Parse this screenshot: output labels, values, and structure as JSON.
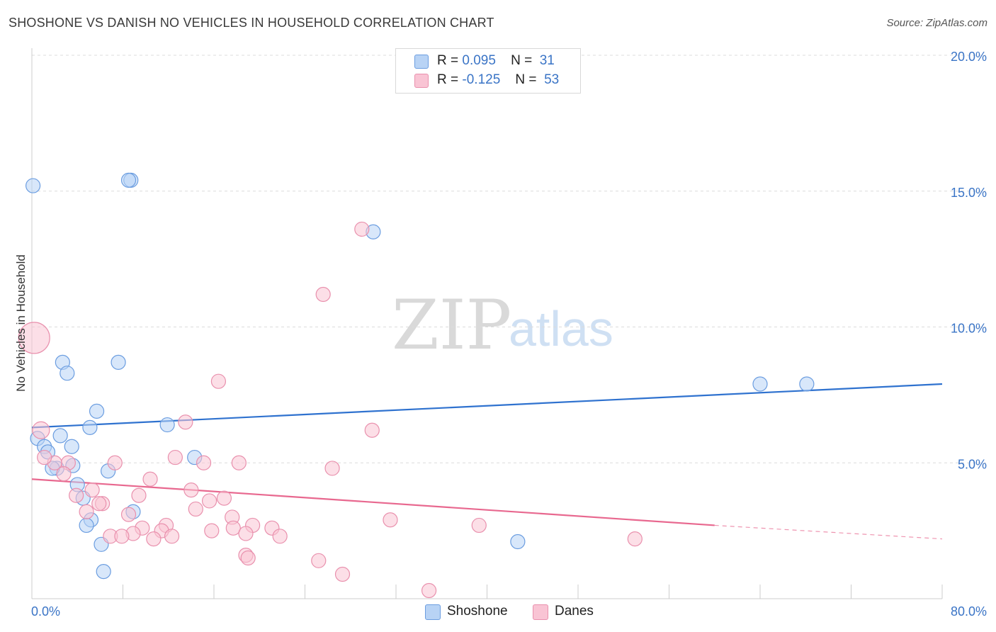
{
  "title": "SHOSHONE VS DANISH NO VEHICLES IN HOUSEHOLD CORRELATION CHART",
  "source": "Source: ZipAtlas.com",
  "watermark": {
    "zip": "ZIP",
    "atlas": "atlas"
  },
  "legend": {
    "rows": [
      {
        "r_label": "R =",
        "r_value": "0.095",
        "n_label": "N =",
        "n_value": "31",
        "color": "#b8d3f5",
        "border": "#6b9de0"
      },
      {
        "r_label": "R =",
        "r_value": "-0.125",
        "n_label": "N =",
        "n_value": "53",
        "color": "#f9c4d4",
        "border": "#e990ad"
      }
    ]
  },
  "bottom_legend": [
    {
      "label": "Shoshone",
      "color": "#b8d3f5",
      "border": "#6b9de0"
    },
    {
      "label": "Danes",
      "color": "#f9c4d4",
      "border": "#e990ad"
    }
  ],
  "chart_data": {
    "type": "scatter",
    "title": "SHOSHONE VS DANISH NO VEHICLES IN HOUSEHOLD CORRELATION CHART",
    "xlabel": "",
    "ylabel": "No Vehicles in Household",
    "xlim": [
      0,
      80
    ],
    "ylim": [
      0,
      20
    ],
    "x_tick_labels": [
      {
        "value": 0,
        "label": "0.0%"
      },
      {
        "value": 80,
        "label": "80.0%"
      }
    ],
    "y_tick_labels": [
      {
        "value": 5,
        "label": "5.0%"
      },
      {
        "value": 10,
        "label": "10.0%"
      },
      {
        "value": 15,
        "label": "15.0%"
      },
      {
        "value": 20,
        "label": "20.0%"
      }
    ],
    "grid": true,
    "series": [
      {
        "name": "Shoshone",
        "color": "#6b9de0",
        "fill": "#b8d3f5",
        "line_color": "#2f72cf",
        "trend": {
          "x": [
            0,
            80
          ],
          "y": [
            6.3,
            7.9
          ]
        },
        "points": [
          {
            "x": 0.1,
            "y": 15.2,
            "size": 10
          },
          {
            "x": 8.7,
            "y": 15.4,
            "size": 10
          },
          {
            "x": 8.5,
            "y": 15.4,
            "size": 10
          },
          {
            "x": 30.0,
            "y": 13.5,
            "size": 10
          },
          {
            "x": 2.7,
            "y": 8.7,
            "size": 10
          },
          {
            "x": 7.6,
            "y": 8.7,
            "size": 10
          },
          {
            "x": 3.1,
            "y": 8.3,
            "size": 10
          },
          {
            "x": 64.0,
            "y": 7.9,
            "size": 10
          },
          {
            "x": 68.1,
            "y": 7.9,
            "size": 10
          },
          {
            "x": 5.7,
            "y": 6.9,
            "size": 10
          },
          {
            "x": 5.1,
            "y": 6.3,
            "size": 10
          },
          {
            "x": 11.9,
            "y": 6.4,
            "size": 10
          },
          {
            "x": 2.5,
            "y": 6.0,
            "size": 10
          },
          {
            "x": 0.5,
            "y": 5.9,
            "size": 10
          },
          {
            "x": 3.5,
            "y": 5.6,
            "size": 10
          },
          {
            "x": 1.1,
            "y": 5.6,
            "size": 10
          },
          {
            "x": 1.4,
            "y": 5.4,
            "size": 10
          },
          {
            "x": 14.3,
            "y": 5.2,
            "size": 10
          },
          {
            "x": 3.6,
            "y": 4.9,
            "size": 10
          },
          {
            "x": 2.2,
            "y": 4.8,
            "size": 10
          },
          {
            "x": 1.8,
            "y": 4.8,
            "size": 10
          },
          {
            "x": 6.7,
            "y": 4.7,
            "size": 10
          },
          {
            "x": 4.0,
            "y": 4.2,
            "size": 10
          },
          {
            "x": 4.5,
            "y": 3.7,
            "size": 10
          },
          {
            "x": 8.9,
            "y": 3.2,
            "size": 10
          },
          {
            "x": 5.2,
            "y": 2.9,
            "size": 10
          },
          {
            "x": 4.8,
            "y": 2.7,
            "size": 10
          },
          {
            "x": 6.1,
            "y": 2.0,
            "size": 10
          },
          {
            "x": 42.7,
            "y": 2.1,
            "size": 10
          },
          {
            "x": 6.3,
            "y": 1.0,
            "size": 10
          }
        ]
      },
      {
        "name": "Danes",
        "color": "#e990ad",
        "fill": "#f9c4d4",
        "line_color": "#e8688f",
        "trend": {
          "x": [
            0,
            60
          ],
          "y": [
            4.4,
            2.7
          ],
          "dashed_to": {
            "x": 80,
            "y": 2.2
          }
        },
        "points": [
          {
            "x": 0.2,
            "y": 9.6,
            "size": 22
          },
          {
            "x": 29.0,
            "y": 13.6,
            "size": 10
          },
          {
            "x": 25.6,
            "y": 11.2,
            "size": 10
          },
          {
            "x": 16.4,
            "y": 8.0,
            "size": 10
          },
          {
            "x": 0.8,
            "y": 6.2,
            "size": 12
          },
          {
            "x": 13.5,
            "y": 6.5,
            "size": 10
          },
          {
            "x": 29.9,
            "y": 6.2,
            "size": 10
          },
          {
            "x": 12.6,
            "y": 5.2,
            "size": 10
          },
          {
            "x": 18.2,
            "y": 5.0,
            "size": 10
          },
          {
            "x": 15.1,
            "y": 5.0,
            "size": 10
          },
          {
            "x": 7.3,
            "y": 5.0,
            "size": 10
          },
          {
            "x": 26.4,
            "y": 4.8,
            "size": 10
          },
          {
            "x": 3.2,
            "y": 5.0,
            "size": 10
          },
          {
            "x": 2.0,
            "y": 5.0,
            "size": 10
          },
          {
            "x": 1.1,
            "y": 5.2,
            "size": 10
          },
          {
            "x": 2.8,
            "y": 4.6,
            "size": 10
          },
          {
            "x": 10.4,
            "y": 4.4,
            "size": 10
          },
          {
            "x": 14.0,
            "y": 4.0,
            "size": 10
          },
          {
            "x": 5.3,
            "y": 4.0,
            "size": 10
          },
          {
            "x": 9.4,
            "y": 3.8,
            "size": 10
          },
          {
            "x": 3.9,
            "y": 3.8,
            "size": 10
          },
          {
            "x": 15.6,
            "y": 3.6,
            "size": 10
          },
          {
            "x": 16.9,
            "y": 3.7,
            "size": 10
          },
          {
            "x": 6.2,
            "y": 3.5,
            "size": 10
          },
          {
            "x": 5.9,
            "y": 3.5,
            "size": 10
          },
          {
            "x": 14.4,
            "y": 3.3,
            "size": 10
          },
          {
            "x": 4.8,
            "y": 3.2,
            "size": 10
          },
          {
            "x": 8.5,
            "y": 3.1,
            "size": 10
          },
          {
            "x": 17.6,
            "y": 3.0,
            "size": 10
          },
          {
            "x": 31.5,
            "y": 2.9,
            "size": 10
          },
          {
            "x": 39.3,
            "y": 2.7,
            "size": 10
          },
          {
            "x": 11.8,
            "y": 2.7,
            "size": 10
          },
          {
            "x": 19.4,
            "y": 2.7,
            "size": 10
          },
          {
            "x": 17.7,
            "y": 2.6,
            "size": 10
          },
          {
            "x": 9.7,
            "y": 2.6,
            "size": 10
          },
          {
            "x": 11.4,
            "y": 2.5,
            "size": 10
          },
          {
            "x": 15.8,
            "y": 2.5,
            "size": 10
          },
          {
            "x": 21.1,
            "y": 2.6,
            "size": 10
          },
          {
            "x": 18.8,
            "y": 2.4,
            "size": 10
          },
          {
            "x": 8.9,
            "y": 2.4,
            "size": 10
          },
          {
            "x": 12.3,
            "y": 2.3,
            "size": 10
          },
          {
            "x": 6.9,
            "y": 2.3,
            "size": 10
          },
          {
            "x": 7.9,
            "y": 2.3,
            "size": 10
          },
          {
            "x": 10.7,
            "y": 2.2,
            "size": 10
          },
          {
            "x": 21.8,
            "y": 2.3,
            "size": 10
          },
          {
            "x": 53.0,
            "y": 2.2,
            "size": 10
          },
          {
            "x": 18.8,
            "y": 1.6,
            "size": 10
          },
          {
            "x": 19.0,
            "y": 1.5,
            "size": 10
          },
          {
            "x": 25.2,
            "y": 1.4,
            "size": 10
          },
          {
            "x": 27.3,
            "y": 0.9,
            "size": 10
          },
          {
            "x": 34.9,
            "y": 0.3,
            "size": 10
          }
        ]
      }
    ]
  }
}
